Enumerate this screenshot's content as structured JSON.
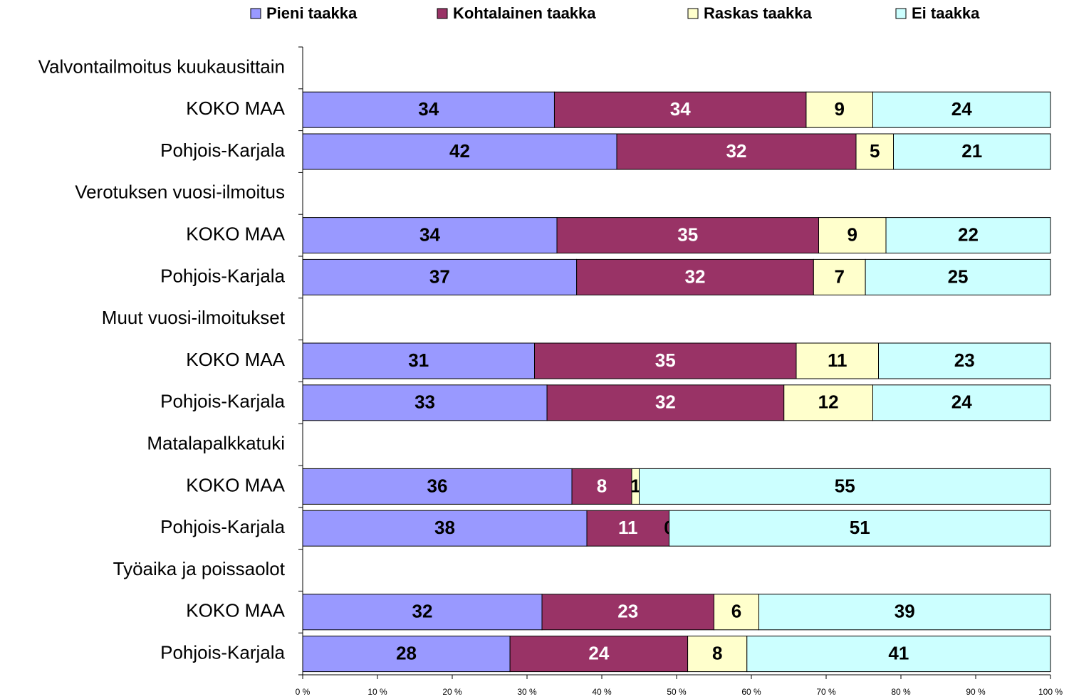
{
  "chart_data": {
    "type": "bar",
    "orientation": "horizontal",
    "stacking": "percent",
    "categories": [
      "Valvontailmoitus kuukausittain",
      "KOKO MAA",
      "Pohjois-Karjala",
      "Verotuksen vuosi-ilmoitus",
      "KOKO MAA",
      "Pohjois-Karjala",
      "Muut vuosi-ilmoitukset",
      "KOKO MAA",
      "Pohjois-Karjala",
      "Matalapalkkatuki",
      "KOKO MAA",
      "Pohjois-Karjala",
      "Työaika ja poissaolot",
      "KOKO MAA",
      "Pohjois-Karjala"
    ],
    "series": [
      {
        "name": "Pieni taakka",
        "color": "#9999ff",
        "label_color": "#000000",
        "values": [
          null,
          34,
          42,
          null,
          34,
          37,
          null,
          31,
          33,
          null,
          36,
          38,
          null,
          32,
          28
        ]
      },
      {
        "name": "Kohtalainen taakka",
        "color": "#993366",
        "label_color": "#ffffff",
        "values": [
          null,
          34,
          32,
          null,
          35,
          32,
          null,
          35,
          32,
          null,
          8,
          11,
          null,
          23,
          24
        ]
      },
      {
        "name": "Raskas taakka",
        "color": "#ffffcc",
        "label_color": "#000000",
        "values": [
          null,
          9,
          5,
          null,
          9,
          7,
          null,
          11,
          12,
          null,
          1,
          0,
          null,
          6,
          8
        ]
      },
      {
        "name": "Ei taakka",
        "color": "#ccffff",
        "label_color": "#000000",
        "values": [
          null,
          24,
          21,
          null,
          22,
          25,
          null,
          23,
          24,
          null,
          55,
          51,
          null,
          39,
          41
        ]
      }
    ],
    "xlim": [
      0,
      100
    ],
    "xticks": [
      {
        "value": 0,
        "label": "0 %"
      },
      {
        "value": 10,
        "label": "10 %"
      },
      {
        "value": 20,
        "label": "20 %"
      },
      {
        "value": 30,
        "label": "30 %"
      },
      {
        "value": 40,
        "label": "40 %"
      },
      {
        "value": 50,
        "label": "50 %"
      },
      {
        "value": 60,
        "label": "60 %"
      },
      {
        "value": 70,
        "label": "70 %"
      },
      {
        "value": 80,
        "label": "80 %"
      },
      {
        "value": 90,
        "label": "90 %"
      },
      {
        "value": 100,
        "label": "100 %"
      }
    ],
    "legend": "top"
  }
}
